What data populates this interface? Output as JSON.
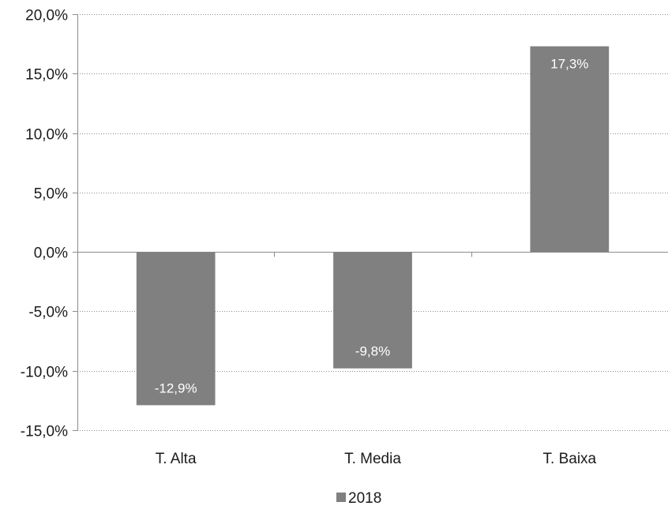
{
  "chart_data": {
    "type": "bar",
    "title": "",
    "xlabel": "",
    "ylabel": "",
    "categories": [
      "T. Alta",
      "T. Media",
      "T. Baixa"
    ],
    "series": [
      {
        "name": "2018",
        "values": [
          -12.9,
          -9.8,
          17.3
        ],
        "data_labels": [
          "-12,9%",
          "-9,8%",
          "17,3%"
        ],
        "color": "#808080"
      }
    ],
    "ylim": [
      -15,
      20
    ],
    "yticks": [
      20,
      15,
      10,
      5,
      0,
      -5,
      -10,
      -15
    ],
    "ytick_labels": [
      "20,0%",
      "15,0%",
      "10,0%",
      "5,0%",
      "0,0%",
      "-5,0%",
      "-10,0%",
      "-15,0%"
    ],
    "grid": true,
    "legend": {
      "position": "bottom",
      "entries": [
        "2018"
      ]
    }
  }
}
